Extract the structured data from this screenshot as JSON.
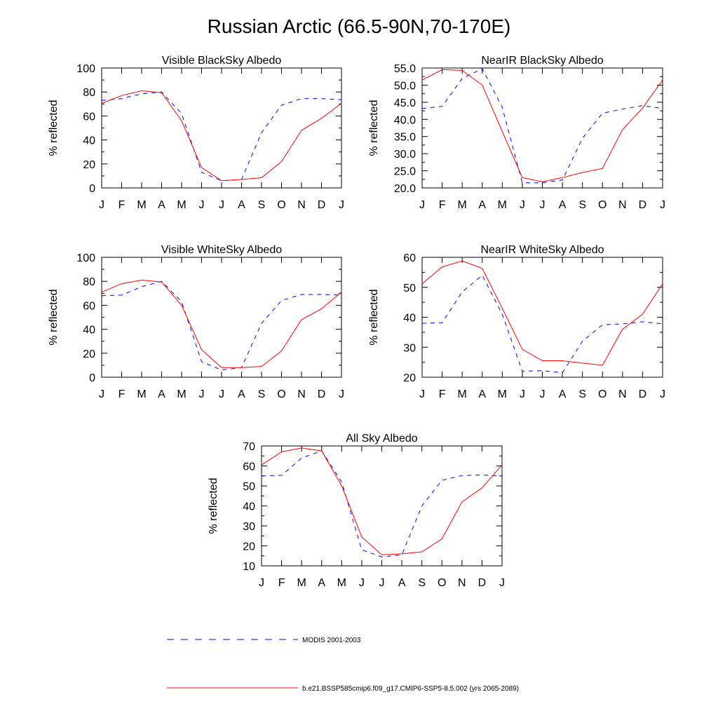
{
  "figure": {
    "title": "Russian Arctic (66.5-90N,70-170E)"
  },
  "legend": {
    "entries": [
      {
        "label": "MODIS 2001-2003",
        "color": "#0000ff",
        "dash": "dashed"
      },
      {
        "label": "b.e21.BSSP585cmip6.f09_g17.CMIP6-SSP5-8.5.002 (yrs 2065-2089)",
        "color": "#ff0000",
        "dash": "solid"
      }
    ]
  },
  "chart_data": [
    {
      "type": "line",
      "title": "Visible BlackSky Albedo",
      "ylabel": "% reflected",
      "xlabel": "",
      "categories": [
        "J",
        "F",
        "M",
        "A",
        "M",
        "J",
        "J",
        "A",
        "S",
        "O",
        "N",
        "D",
        "J"
      ],
      "ylim": [
        0,
        100
      ],
      "yticks": [
        0,
        20,
        40,
        60,
        80,
        100
      ],
      "ytick_labels": [
        "0",
        "20",
        "40",
        "60",
        "80",
        "100"
      ],
      "series": [
        {
          "name": "MODIS 2001-2003",
          "values": [
            73,
            74.5,
            78.5,
            80,
            62,
            13,
            6,
            7,
            46,
            69,
            74.5,
            74.5,
            73.5
          ]
        },
        {
          "name": "b.e21.BSSP585cmip6.f09_g17.CMIP6-SSP5-8.5.002 (yrs 2065-2089)",
          "values": [
            70.5,
            77,
            81,
            79.5,
            56,
            17,
            6,
            7,
            8.5,
            22,
            48,
            58,
            70.5
          ]
        }
      ]
    },
    {
      "type": "line",
      "title": "NearIR BlackSky Albedo",
      "ylabel": "% reflected",
      "xlabel": "",
      "categories": [
        "J",
        "F",
        "M",
        "A",
        "M",
        "J",
        "J",
        "A",
        "S",
        "O",
        "N",
        "D",
        "J"
      ],
      "ylim": [
        20,
        55
      ],
      "yticks": [
        20,
        25,
        30,
        35,
        40,
        45,
        50,
        55
      ],
      "ytick_labels": [
        "20.0",
        "25.0",
        "30.0",
        "35.0",
        "40.0",
        "45.0",
        "50.0",
        "55.0"
      ],
      "series": [
        {
          "name": "MODIS 2001-2003",
          "values": [
            43.2,
            43.8,
            52,
            54.8,
            43.5,
            21.5,
            21.5,
            22.3,
            34.5,
            41.8,
            43,
            44,
            43.2
          ]
        },
        {
          "name": "b.e21.BSSP585cmip6.f09_g17.CMIP6-SSP5-8.5.002 (yrs 2065-2089)",
          "values": [
            51.5,
            54.5,
            54.3,
            50,
            36.5,
            23,
            21.8,
            23,
            24.5,
            25.7,
            37,
            43.3,
            51.5
          ]
        }
      ]
    },
    {
      "type": "line",
      "title": "Visible WhiteSky Albedo",
      "ylabel": "% reflected",
      "xlabel": "",
      "categories": [
        "J",
        "F",
        "M",
        "A",
        "M",
        "J",
        "J",
        "A",
        "S",
        "O",
        "N",
        "D",
        "J"
      ],
      "ylim": [
        0,
        100
      ],
      "yticks": [
        0,
        20,
        40,
        60,
        80,
        100
      ],
      "ytick_labels": [
        "0",
        "20",
        "40",
        "60",
        "80",
        "100"
      ],
      "series": [
        {
          "name": "MODIS 2001-2003",
          "values": [
            68,
            68.5,
            75.5,
            80,
            63,
            13,
            6,
            8,
            45,
            64,
            69,
            69,
            68.5
          ]
        },
        {
          "name": "b.e21.BSSP585cmip6.f09_g17.CMIP6-SSP5-8.5.002 (yrs 2065-2089)",
          "values": [
            71,
            78,
            81,
            79.5,
            60,
            23,
            8,
            8,
            9,
            22,
            48,
            57,
            71
          ]
        }
      ]
    },
    {
      "type": "line",
      "title": "NearIR WhiteSky Albedo",
      "ylabel": "% reflected",
      "xlabel": "",
      "categories": [
        "J",
        "F",
        "M",
        "A",
        "M",
        "J",
        "J",
        "A",
        "S",
        "O",
        "N",
        "D",
        "J"
      ],
      "ylim": [
        20,
        60
      ],
      "yticks": [
        20,
        30,
        40,
        50,
        60
      ],
      "ytick_labels": [
        "20",
        "30",
        "40",
        "50",
        "60"
      ],
      "series": [
        {
          "name": "MODIS 2001-2003",
          "values": [
            38,
            38.2,
            48.5,
            54,
            41,
            22,
            22.2,
            21.5,
            32,
            37.5,
            37.8,
            38.5,
            37.8
          ]
        },
        {
          "name": "b.e21.BSSP585cmip6.f09_g17.CMIP6-SSP5-8.5.002 (yrs 2065-2089)",
          "values": [
            51.2,
            56.8,
            58.8,
            56.3,
            43,
            29.3,
            25.5,
            25.5,
            24.7,
            24,
            36,
            41,
            51.2
          ]
        }
      ]
    },
    {
      "type": "line",
      "title": "All Sky Albedo",
      "ylabel": "% reflected",
      "xlabel": "",
      "categories": [
        "J",
        "F",
        "M",
        "A",
        "M",
        "J",
        "J",
        "A",
        "S",
        "O",
        "N",
        "D",
        "J"
      ],
      "ylim": [
        10,
        70
      ],
      "yticks": [
        10,
        20,
        30,
        40,
        50,
        60,
        70
      ],
      "ytick_labels": [
        "10",
        "20",
        "30",
        "40",
        "50",
        "60",
        "70"
      ],
      "series": [
        {
          "name": "MODIS 2001-2003",
          "values": [
            55,
            55.3,
            64,
            67.5,
            52,
            18,
            14.5,
            15.5,
            40,
            52.8,
            55.2,
            55.5,
            55
          ]
        },
        {
          "name": "b.e21.BSSP585cmip6.f09_g17.CMIP6-SSP5-8.5.002 (yrs 2065-2089)",
          "values": [
            60.5,
            67,
            69,
            67.5,
            50,
            24.5,
            15.5,
            16,
            17,
            23.5,
            42,
            49,
            60.5
          ]
        }
      ]
    }
  ]
}
